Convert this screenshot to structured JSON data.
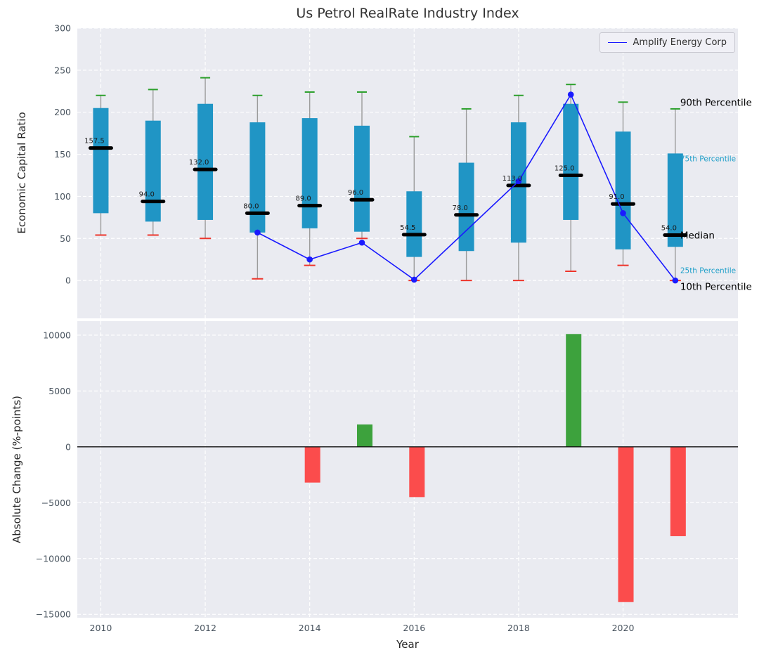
{
  "title": "Us Petrol RealRate Industry Index",
  "axes": {
    "top_ylabel": "Economic Capital Ratio",
    "bottom_ylabel": "Absolute Change (%-points)",
    "xlabel": "Year"
  },
  "legend": {
    "label": "Amplify Energy Corp"
  },
  "colors": {
    "plot_bg": "#eaebf1",
    "grid": "#ffffff",
    "tick_label": "#49545f",
    "box_fill": "#2095c5",
    "whisker": "#9b9b9b",
    "cap_top": "#2ca02c",
    "cap_bottom": "#ee352b",
    "median": "#000000",
    "line": "#1a1aff",
    "bar_pos": "#3da23d",
    "bar_neg": "#fb4c4c",
    "zero_line": "#111111",
    "annotation_black": "#000000",
    "annotation_teal": "#1e9fc9",
    "median_label": "#1a1a1a"
  },
  "chart_data": [
    {
      "type": "boxplot+line",
      "title": "Us Petrol RealRate Industry Index",
      "ylabel": "Economic Capital Ratio",
      "ylim": [
        -45,
        300
      ],
      "yticks": [
        0,
        50,
        100,
        150,
        200,
        250,
        300
      ],
      "yticklabels": [
        "0",
        "50",
        "100",
        "150",
        "200",
        "250",
        "300"
      ],
      "xticks": [
        2010,
        2012,
        2014,
        2016,
        2018,
        2020
      ],
      "years": [
        2010,
        2011,
        2012,
        2013,
        2014,
        2015,
        2016,
        2017,
        2018,
        2019,
        2020,
        2021
      ],
      "boxes": [
        {
          "year": 2010,
          "p10": 54,
          "p25": 80,
          "median": 157.5,
          "p75": 205,
          "p90": 220,
          "median_label": "157.5"
        },
        {
          "year": 2011,
          "p10": 54,
          "p25": 70,
          "median": 94.0,
          "p75": 190,
          "p90": 227,
          "median_label": "94.0"
        },
        {
          "year": 2012,
          "p10": 50,
          "p25": 72,
          "median": 132.0,
          "p75": 210,
          "p90": 241,
          "median_label": "132.0"
        },
        {
          "year": 2013,
          "p10": 2,
          "p25": 57,
          "median": 80.0,
          "p75": 188,
          "p90": 220,
          "median_label": "80.0"
        },
        {
          "year": 2014,
          "p10": 18,
          "p25": 62,
          "median": 89.0,
          "p75": 193,
          "p90": 224,
          "median_label": "89.0"
        },
        {
          "year": 2015,
          "p10": 50,
          "p25": 58,
          "median": 96.0,
          "p75": 184,
          "p90": 224,
          "median_label": "96.0"
        },
        {
          "year": 2016,
          "p10": 0,
          "p25": 28,
          "median": 54.5,
          "p75": 106,
          "p90": 171,
          "median_label": "54.5"
        },
        {
          "year": 2017,
          "p10": 0,
          "p25": 35,
          "median": 78.0,
          "p75": 140,
          "p90": 204,
          "median_label": "78.0"
        },
        {
          "year": 2018,
          "p10": 0,
          "p25": 45,
          "median": 113.0,
          "p75": 188,
          "p90": 220,
          "median_label": "113.0"
        },
        {
          "year": 2019,
          "p10": 11,
          "p25": 72,
          "median": 125.0,
          "p75": 210,
          "p90": 233,
          "median_label": "125.0"
        },
        {
          "year": 2020,
          "p10": 18,
          "p25": 37,
          "median": 91.0,
          "p75": 177,
          "p90": 212,
          "median_label": "91.0"
        },
        {
          "year": 2021,
          "p10": 0,
          "p25": 40,
          "median": 54.0,
          "p75": 151,
          "p90": 204,
          "median_label": "54.0"
        }
      ],
      "series": [
        {
          "name": "Amplify Energy Corp",
          "x": [
            2013,
            2014,
            2015,
            2016,
            2018,
            2019,
            2020,
            2021
          ],
          "y": [
            57,
            25,
            45,
            1,
            118,
            221,
            80,
            0
          ]
        }
      ],
      "annotations": [
        {
          "text": "90th Percentile",
          "y": 212,
          "style": "black",
          "small": false
        },
        {
          "text": "75th Percentile",
          "y": 146,
          "style": "teal",
          "small": true
        },
        {
          "text": "Median",
          "y": 54,
          "style": "black",
          "small": false
        },
        {
          "text": "25th Percentile",
          "y": 13,
          "style": "teal",
          "small": true
        },
        {
          "text": "10th Percentile",
          "y": -7,
          "style": "black",
          "small": false
        }
      ],
      "legend_entries": [
        "Amplify Energy Corp"
      ]
    },
    {
      "type": "bar",
      "xlabel": "Year",
      "ylabel": "Absolute Change (%-points)",
      "ylim": [
        -15300,
        11250
      ],
      "yticks": [
        -15000,
        -10000,
        -5000,
        0,
        5000,
        10000
      ],
      "yticklabels": [
        "−15000",
        "−10000",
        "−5000",
        "0",
        "5000",
        "10000"
      ],
      "xticks": [
        2010,
        2012,
        2014,
        2016,
        2018,
        2020
      ],
      "xticklabels": [
        "2010",
        "2012",
        "2014",
        "2016",
        "2018",
        "2020"
      ],
      "bars": [
        {
          "year": 2014,
          "value": -3200
        },
        {
          "year": 2015,
          "value": 2000
        },
        {
          "year": 2016,
          "value": -4500
        },
        {
          "year": 2019,
          "value": 10100
        },
        {
          "year": 2020,
          "value": -13900
        },
        {
          "year": 2021,
          "value": -8000
        }
      ]
    }
  ]
}
